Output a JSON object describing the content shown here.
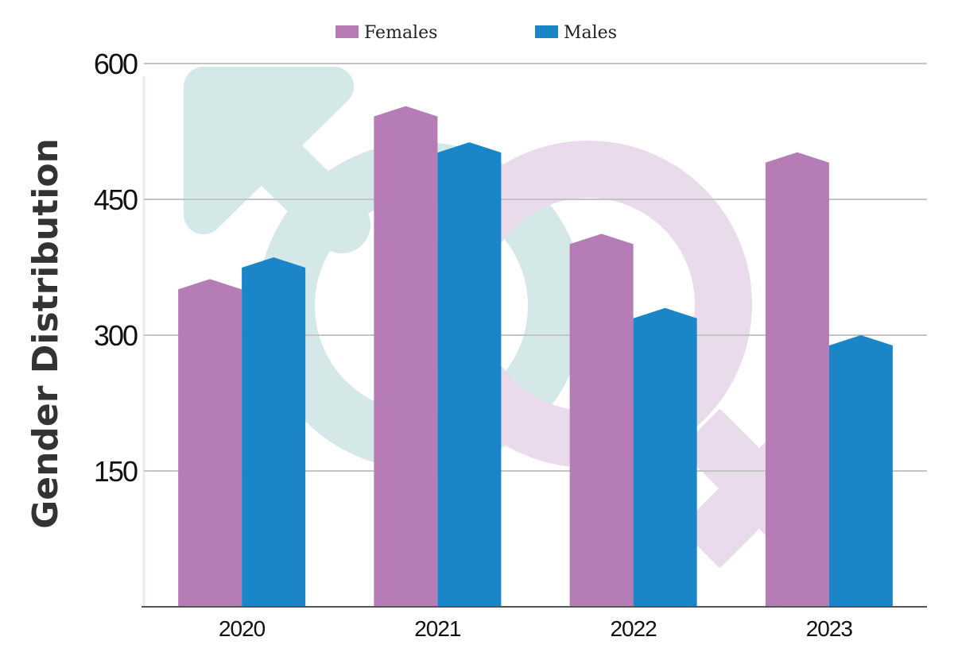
{
  "chart_data": {
    "type": "bar",
    "title": "",
    "xlabel": "",
    "ylabel": "Gender Distribution",
    "categories": [
      "2020",
      "2021",
      "2022",
      "2023"
    ],
    "series": [
      {
        "name": "Females",
        "color": "#b57cb6",
        "values": [
          362,
          553,
          412,
          502
        ]
      },
      {
        "name": "Males",
        "color": "#1a86c8",
        "values": [
          386,
          513,
          330,
          300
        ]
      }
    ],
    "ylim": [
      0,
      600
    ],
    "yticks": [
      150,
      300,
      450,
      600
    ],
    "grid": true,
    "legend_position": "top-center",
    "background_icons": [
      "male-symbol-icon",
      "female-symbol-icon"
    ]
  }
}
